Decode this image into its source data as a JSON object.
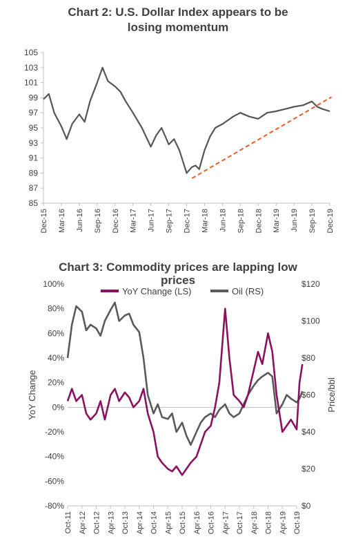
{
  "chart_data": [
    {
      "type": "line",
      "title_line1": "Chart 2: U.S. Dollar Index appears to be",
      "title_line2": "losing momentum",
      "xlabel": "",
      "ylabel": "",
      "ylim": [
        85,
        105
      ],
      "yticks": [
        "105",
        "103",
        "101",
        "99",
        "97",
        "95",
        "93",
        "91",
        "89",
        "87",
        "85"
      ],
      "categories": [
        "Dec-15",
        "Mar-16",
        "Jun-16",
        "Sep-16",
        "Dec-16",
        "Mar-17",
        "Jun-17",
        "Sep-17",
        "Dec-17",
        "Mar-18",
        "Jun-18",
        "Sep-18",
        "Dec-18",
        "Mar-19",
        "Jun-19",
        "Sep-19",
        "Dec-19"
      ],
      "grid": false,
      "legend": "none",
      "series": [
        {
          "color": "#555555",
          "x": [
            0,
            0.3,
            0.6,
            1.0,
            1.3,
            1.6,
            2.0,
            2.3,
            2.6,
            3.0,
            3.3,
            3.6,
            4.0,
            4.3,
            4.6,
            5.0,
            5.5,
            6.0,
            6.3,
            6.6,
            7.0,
            7.3,
            7.6,
            8.0,
            8.3,
            8.5,
            8.7,
            9.0,
            9.3,
            9.6,
            10.0,
            10.3,
            10.6,
            11.0,
            11.5,
            12.0,
            12.5,
            13.0,
            13.5,
            14.0,
            14.5,
            15.0,
            15.3,
            15.6,
            16.0
          ],
          "y": [
            98.8,
            99.5,
            97.0,
            95.2,
            93.5,
            95.5,
            96.8,
            95.8,
            98.5,
            101.0,
            103.0,
            101.2,
            100.5,
            99.8,
            98.5,
            97.0,
            95.0,
            92.5,
            94.0,
            95.0,
            92.8,
            93.5,
            92.0,
            89.0,
            89.8,
            90.0,
            89.5,
            92.0,
            93.8,
            95.0,
            95.5,
            96.0,
            96.5,
            97.0,
            96.5,
            96.2,
            97.0,
            97.2,
            97.5,
            97.8,
            98.0,
            98.5,
            97.8,
            97.5,
            97.2
          ]
        }
      ],
      "trendline": {
        "color": "#f15a22",
        "x": [
          8.3,
          16.1
        ],
        "y": [
          88.3,
          99.1
        ]
      }
    },
    {
      "type": "line",
      "title_line1": "Chart 3: Commodity prices are lapping low",
      "title_line2": "prices",
      "ylabel": "YoY Change",
      "y2label": "Price/bbl",
      "ylim": [
        -80,
        100
      ],
      "y2lim": [
        0,
        120
      ],
      "yticks": [
        "100%",
        "80%",
        "60%",
        "40%",
        "20%",
        "0%",
        "-20%",
        "-40%",
        "-60%",
        "-80%"
      ],
      "y2ticks": [
        "$120",
        "$100",
        "$80",
        "$60",
        "$40",
        "$20",
        "$0"
      ],
      "categories": [
        "Oct-11",
        "Apr-12",
        "Oct-12",
        "Apr-13",
        "Oct-13",
        "Apr-14",
        "Oct-14",
        "Apr-15",
        "Oct-15",
        "Apr-16",
        "Oct-16",
        "Apr-17",
        "Oct-17",
        "Apr-18",
        "Oct-18",
        "Apr-19",
        "Oct-19"
      ],
      "grid": false,
      "legend": "top",
      "series": [
        {
          "name": "YoY Change (LS)",
          "axis": "left",
          "color": "#8b1060",
          "x": [
            0,
            0.3,
            0.6,
            1.0,
            1.3,
            1.6,
            2.0,
            2.3,
            2.6,
            3.0,
            3.3,
            3.6,
            4.0,
            4.3,
            4.6,
            5.0,
            5.3,
            5.6,
            6.0,
            6.3,
            6.6,
            7.0,
            7.3,
            7.6,
            8.0,
            8.3,
            8.6,
            9.0,
            9.3,
            9.6,
            10.0,
            10.3,
            10.6,
            11.0,
            11.3,
            11.6,
            12.0,
            12.3,
            12.6,
            13.0,
            13.3,
            13.6,
            14.0,
            14.3,
            14.6,
            15.0,
            15.3,
            15.6,
            16.0,
            16.2,
            16.4
          ],
          "y": [
            5,
            15,
            5,
            10,
            -5,
            -10,
            -5,
            5,
            -10,
            10,
            15,
            5,
            12,
            8,
            0,
            5,
            15,
            -5,
            -20,
            -40,
            -45,
            -50,
            -52,
            -48,
            -55,
            -50,
            -45,
            -40,
            -30,
            -20,
            -15,
            0,
            20,
            80,
            40,
            10,
            5,
            0,
            10,
            30,
            45,
            35,
            60,
            45,
            10,
            -20,
            -15,
            -10,
            -18,
            20,
            35
          ]
        },
        {
          "name": "Oil (RS)",
          "axis": "right",
          "color": "#595959",
          "x": [
            0,
            0.3,
            0.6,
            1.0,
            1.3,
            1.6,
            2.0,
            2.3,
            2.6,
            3.0,
            3.3,
            3.6,
            4.0,
            4.3,
            4.6,
            5.0,
            5.3,
            5.6,
            6.0,
            6.3,
            6.6,
            7.0,
            7.3,
            7.6,
            8.0,
            8.3,
            8.6,
            9.0,
            9.3,
            9.6,
            10.0,
            10.3,
            10.6,
            11.0,
            11.3,
            11.6,
            12.0,
            12.3,
            12.6,
            13.0,
            13.3,
            13.6,
            14.0,
            14.3,
            14.6,
            15.0,
            15.3,
            15.6,
            16.0,
            16.2,
            16.4
          ],
          "y": [
            80,
            98,
            108,
            105,
            95,
            98,
            96,
            92,
            100,
            106,
            110,
            100,
            103,
            104,
            98,
            94,
            80,
            60,
            50,
            55,
            48,
            47,
            50,
            40,
            45,
            38,
            33,
            40,
            45,
            48,
            50,
            48,
            52,
            55,
            50,
            48,
            50,
            55,
            60,
            65,
            68,
            70,
            72,
            70,
            50,
            55,
            60,
            58,
            56,
            58,
            62
          ]
        }
      ]
    }
  ]
}
